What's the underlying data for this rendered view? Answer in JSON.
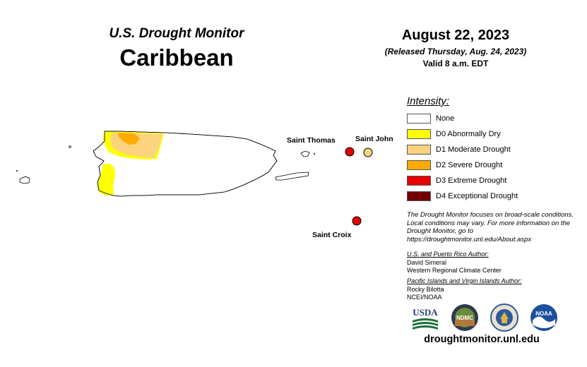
{
  "header": {
    "title": "U.S. Drought Monitor",
    "region": "Caribbean",
    "date": "August 22, 2023",
    "released": "(Released Thursday, Aug. 24, 2023)",
    "valid": "Valid 8 a.m. EDT"
  },
  "legend": {
    "title": "Intensity:",
    "items": [
      {
        "label": "None",
        "color": "#ffffff"
      },
      {
        "label": "D0 Abnormally Dry",
        "color": "#ffff00"
      },
      {
        "label": "D1 Moderate Drought",
        "color": "#fcd37f"
      },
      {
        "label": "D2 Severe Drought",
        "color": "#ffaa00"
      },
      {
        "label": "D3 Extreme Drought",
        "color": "#e60000"
      },
      {
        "label": "D4 Exceptional Drought",
        "color": "#730000"
      }
    ]
  },
  "places": {
    "saint_thomas": "Saint Thomas",
    "saint_john": "Saint John",
    "saint_croix": "Saint Croix"
  },
  "place_status": {
    "saint_thomas": "D3",
    "saint_john": "D1",
    "saint_croix": "D3"
  },
  "note": "The Drought Monitor focuses on broad-scale conditions. Local conditions may vary. For more information on the Drought Monitor, go to https://droughtmonitor.unl.edu/About.aspx",
  "credits": {
    "pr_heading": "U.S. and Puerto Rico Author:",
    "pr_name": "David Simeral",
    "pr_org": "Western Regional Climate Center",
    "pi_heading": "Pacific Islands and Virgin Islands Author:",
    "pi_name": "Rocky Bilotta",
    "pi_org": "NCEI/NOAA"
  },
  "logos": {
    "usda": "USDA",
    "ndmc": "NDMC",
    "doc": "DOC",
    "noaa": "NOAA"
  },
  "url": "droughtmonitor.unl.edu"
}
